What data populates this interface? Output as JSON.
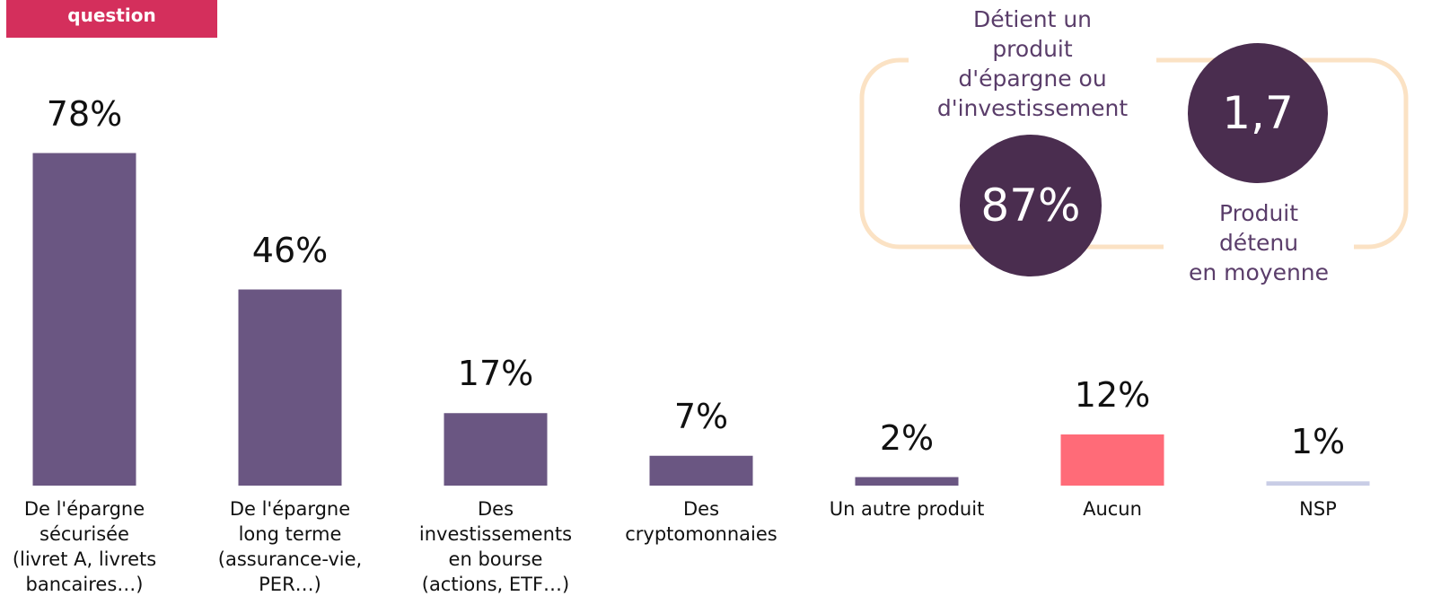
{
  "header": {
    "tag": "question"
  },
  "chart_data": {
    "type": "bar",
    "categories": [
      "De l'épargne\nsécurisée\n(livret A, livrets\nbancaires…)",
      "De l'épargne\nlong terme\n(assurance-vie,\nPER…)",
      "Des\ninvestissements\nen bourse\n(actions, ETF…)",
      "Des\ncryptomonnaies",
      "Un autre produit",
      "Aucun",
      "NSP"
    ],
    "values": [
      78,
      46,
      17,
      7,
      2,
      12,
      1
    ],
    "value_labels": [
      "78%",
      "46%",
      "17%",
      "7%",
      "2%",
      "12%",
      "1%"
    ],
    "colors": [
      "#6a5682",
      "#6a5682",
      "#6a5682",
      "#6a5682",
      "#6a5682",
      "#ff6b78",
      "#c9cde6"
    ]
  },
  "stats": [
    {
      "label": "Détient un\nproduit\nd'épargne ou\nd'investissement",
      "value": "87%"
    },
    {
      "label": "Produit\ndétenu\nen moyenne",
      "value": "1,7"
    }
  ]
}
